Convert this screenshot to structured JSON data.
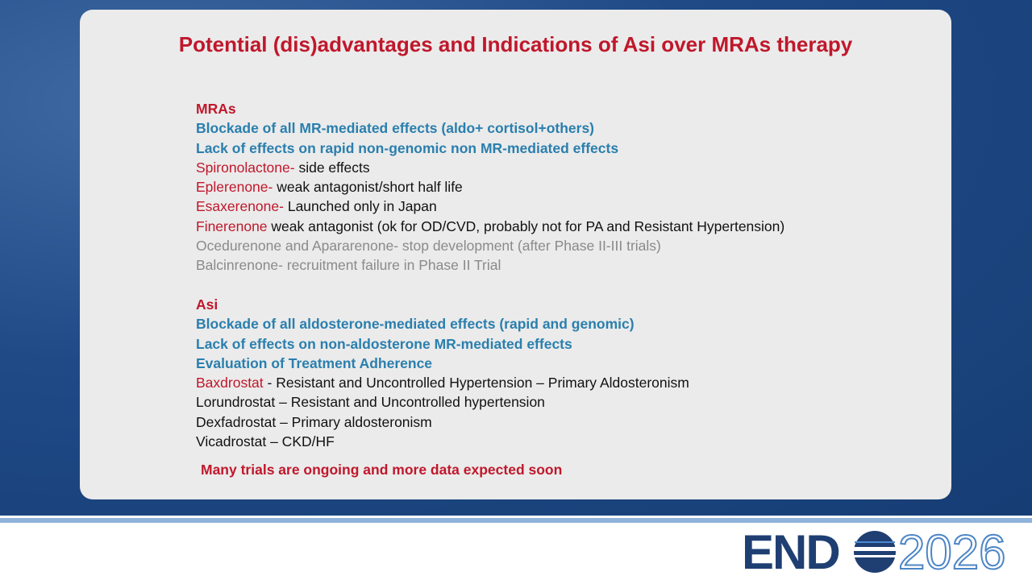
{
  "header": {
    "title": "Potential (dis)advantages and Indications of Asi over MRAs therapy"
  },
  "sections": [
    {
      "heading": "MRAs",
      "lines": [
        {
          "kind": "key",
          "text": "Blockade of all MR-mediated effects (aldo+ cortisol+others)"
        },
        {
          "kind": "key",
          "text": "Lack of effects on rapid non-genomic non MR-mediated effects"
        },
        {
          "kind": "drug",
          "lead": "Spironolactone-",
          "text": "side effects"
        },
        {
          "kind": "drug",
          "lead": "Eplerenone-",
          "text": "weak antagonist/short half life"
        },
        {
          "kind": "drug",
          "lead": "Esaxerenone-",
          "text": "Launched only in Japan"
        },
        {
          "kind": "drug",
          "lead": "Finerenone",
          "text": "weak antagonist (ok for OD/CVD, probably not for PA and Resistant Hypertension)"
        },
        {
          "kind": "muted",
          "text": "Ocedurenone and Apararenone- stop development (after Phase II-III trials)"
        },
        {
          "kind": "muted",
          "text": "Balcinrenone- recruitment failure in Phase II Trial"
        }
      ]
    },
    {
      "heading": "Asi",
      "lines": [
        {
          "kind": "key",
          "text": "Blockade of all aldosterone-mediated effects (rapid and genomic)"
        },
        {
          "kind": "key",
          "text": "Lack of effects on non-aldosterone MR-mediated effects"
        },
        {
          "kind": "key",
          "text": "Evaluation of Treatment Adherence"
        },
        {
          "kind": "drug",
          "lead": "Baxdrostat",
          "text": "- Resistant and Uncontrolled Hypertension – Primary Aldosteronism"
        },
        {
          "kind": "plain",
          "text": "Lorundrostat – Resistant and Uncontrolled hypertension"
        },
        {
          "kind": "plain",
          "text": "Dexfadrostat – Primary aldosteronism"
        },
        {
          "kind": "plain",
          "text": "Vicadrostat – CKD/HF"
        }
      ]
    }
  ],
  "note": "Many trials are ongoing and more data expected soon",
  "logo": {
    "left": "END",
    "right": "2026"
  }
}
